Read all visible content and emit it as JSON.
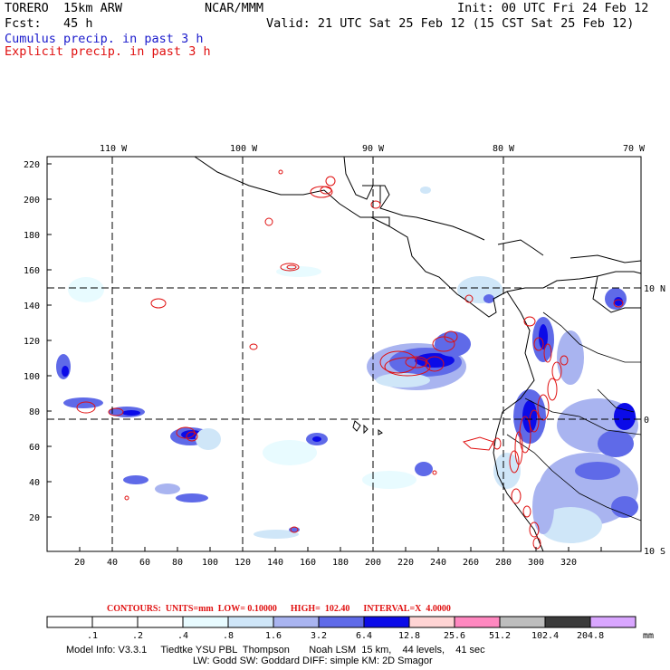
{
  "header": {
    "model": "TORERO  15km ARW",
    "org": "NCAR/MMM",
    "init": "Init: 00 UTC Fri 24 Feb 12",
    "fcst": "Fcst:   45 h",
    "valid": "Valid: 21 UTC Sat 25 Feb 12 (15 CST Sat 25 Feb 12)",
    "line_blue": "Cumulus precip. in past 3 h",
    "line_red": "Explicit precip. in past 3 h"
  },
  "map": {
    "lon_labels": [
      "110 W",
      "100 W",
      "90 W",
      "80 W",
      "70 W"
    ],
    "lat_labels": [
      "10 N",
      "0",
      "10 S"
    ],
    "y_ticks": [
      "220",
      "200",
      "180",
      "160",
      "140",
      "120",
      "100",
      "80",
      "60",
      "40",
      "20"
    ],
    "x_ticks": [
      "20",
      "40",
      "60",
      "80",
      "100",
      "120",
      "140",
      "160",
      "180",
      "200",
      "220",
      "240",
      "260",
      "280",
      "300",
      "320"
    ]
  },
  "footer": {
    "contours": "CONTOURS:  UNITS=mm  LOW= 0.10000      HIGH=  102.40      INTERVAL=X  4.0000",
    "colorbar_labels": [
      ".1",
      ".2",
      ".4",
      ".8",
      "1.6",
      "3.2",
      "6.4",
      "12.8",
      "25.6",
      "51.2",
      "102.4",
      "204.8"
    ],
    "colorbar_unit": "mm",
    "colorbar_colors": [
      "#ffffff",
      "#ffffff",
      "#ffffff",
      "#e8fbff",
      "#cfe6f8",
      "#a9b4f0",
      "#5f6ae8",
      "#0b0be8",
      "#ffd4d4",
      "#ff88c0",
      "#bdbdbd",
      "#3b3b3b",
      "#d9a6ff"
    ],
    "info1": "Model Info: V3.3.1     Tiedtke YSU PBL  Thompson       Noah LSM  15 km,    44 levels,    41 sec",
    "info2": "LW: Godd SW: Goddard DIFF: simple KM: 2D Smagor"
  }
}
